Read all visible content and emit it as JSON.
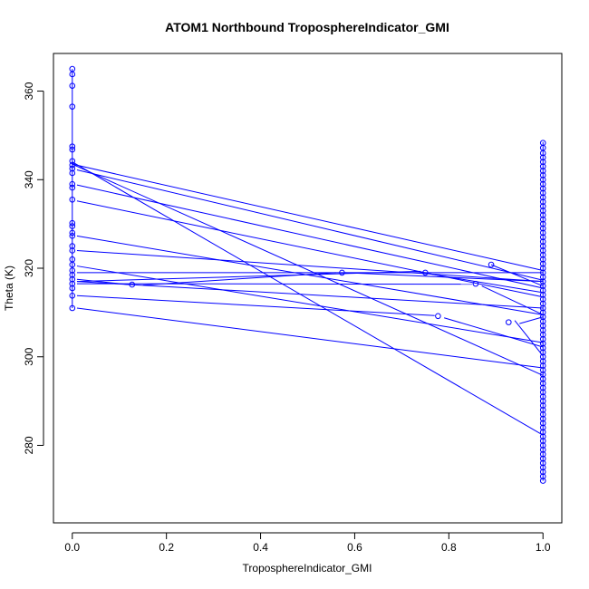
{
  "chart_data": {
    "type": "scatter",
    "title": "ATOM1 Northbound TroposphereIndicator_GMI",
    "xlabel": "TroposphereIndicator_GMI",
    "ylabel": "Theta (K)",
    "xlim": [
      -0.04,
      1.04
    ],
    "ylim": [
      262.5,
      368.5
    ],
    "x_ticks": [
      "0.0",
      "0.2",
      "0.4",
      "0.6",
      "0.8",
      "1.0"
    ],
    "y_ticks": [
      "280",
      "300",
      "320",
      "340",
      "360"
    ],
    "x_tick_values": [
      0,
      0.2,
      0.4,
      0.6,
      0.8,
      1.0
    ],
    "y_tick_values": [
      280,
      300,
      320,
      340,
      360
    ],
    "grid": false,
    "color": "#0000ff",
    "segments": [
      [
        [
          0.0,
          343.5
        ],
        [
          1.0,
          319.5
        ]
      ],
      [
        [
          0.0,
          343.5
        ],
        [
          1.0,
          295.8
        ]
      ],
      [
        [
          0.0,
          344.0
        ],
        [
          1.0,
          282.3
        ]
      ],
      [
        [
          0.01,
          342.2
        ],
        [
          1.0,
          317.3
        ]
      ],
      [
        [
          0.01,
          338.8
        ],
        [
          1.0,
          315.5
        ]
      ],
      [
        [
          0.01,
          335.2
        ],
        [
          1.0,
          313.5
        ]
      ],
      [
        [
          0.01,
          327.3
        ],
        [
          1.0,
          309.5
        ]
      ],
      [
        [
          0.01,
          324.0
        ],
        [
          1.0,
          317.0
        ]
      ],
      [
        [
          0.01,
          320.5
        ],
        [
          1.0,
          303.2
        ]
      ],
      [
        [
          0.01,
          319.0
        ],
        [
          1.0,
          319.0
        ]
      ],
      [
        [
          0.01,
          317.5
        ],
        [
          0.12,
          316.3
        ]
      ],
      [
        [
          0.15,
          316.2
        ],
        [
          0.56,
          319.0
        ]
      ],
      [
        [
          0.58,
          319.0
        ],
        [
          1.0,
          317.0
        ]
      ],
      [
        [
          0.01,
          317.0
        ],
        [
          1.0,
          311.0
        ]
      ],
      [
        [
          0.01,
          316.5
        ],
        [
          0.85,
          316.4
        ]
      ],
      [
        [
          0.87,
          316.0
        ],
        [
          1.0,
          309.5
        ]
      ],
      [
        [
          0.01,
          317.0
        ],
        [
          0.74,
          319.3
        ]
      ],
      [
        [
          0.76,
          318.7
        ],
        [
          1.0,
          314.5
        ]
      ],
      [
        [
          0.01,
          313.8
        ],
        [
          0.77,
          309.3
        ]
      ],
      [
        [
          0.79,
          308.8
        ],
        [
          1.0,
          302.2
        ]
      ],
      [
        [
          0.01,
          311.0
        ],
        [
          1.0,
          297.5
        ]
      ],
      [
        [
          0.89,
          320.8
        ],
        [
          1.0,
          316.0
        ]
      ],
      [
        [
          0.94,
          308.2
        ],
        [
          1.0,
          300.2
        ]
      ],
      [
        [
          0.95,
          307.5
        ],
        [
          1.0,
          309.0
        ]
      ],
      [
        [
          0.0,
          365.0
        ],
        [
          0.0,
          311.0
        ]
      ],
      [
        [
          1.0,
          348.5
        ],
        [
          1.0,
          272.0
        ]
      ]
    ],
    "points": [
      [
        0.0,
        365.0
      ],
      [
        0.0,
        363.8
      ],
      [
        0.0,
        361.2
      ],
      [
        0.0,
        356.5
      ],
      [
        0.0,
        347.5
      ],
      [
        0.0,
        346.8
      ],
      [
        0.0,
        344.2
      ],
      [
        0.0,
        343.3
      ],
      [
        0.0,
        342.5
      ],
      [
        0.0,
        341.5
      ],
      [
        0.0,
        339.0
      ],
      [
        0.0,
        338.2
      ],
      [
        0.0,
        335.5
      ],
      [
        0.0,
        330.2
      ],
      [
        0.0,
        329.5
      ],
      [
        0.0,
        328.0
      ],
      [
        0.0,
        327.3
      ],
      [
        0.0,
        325.0
      ],
      [
        0.0,
        324.0
      ],
      [
        0.0,
        322.0
      ],
      [
        0.0,
        320.8
      ],
      [
        0.0,
        319.5
      ],
      [
        0.0,
        318.5
      ],
      [
        0.0,
        317.5
      ],
      [
        0.0,
        316.5
      ],
      [
        0.0,
        315.5
      ],
      [
        0.0,
        313.8
      ],
      [
        0.0,
        311.0
      ],
      [
        0.127,
        316.3
      ],
      [
        0.573,
        319.0
      ],
      [
        0.75,
        319.0
      ],
      [
        0.857,
        316.5
      ],
      [
        0.777,
        309.2
      ],
      [
        0.89,
        320.8
      ],
      [
        0.927,
        307.8
      ],
      [
        1.0,
        348.3
      ],
      [
        1.0,
        347.2
      ],
      [
        1.0,
        346.0
      ],
      [
        1.0,
        345.0
      ],
      [
        1.0,
        344.0
      ],
      [
        1.0,
        343.0
      ],
      [
        1.0,
        342.0
      ],
      [
        1.0,
        341.0
      ],
      [
        1.0,
        340.0
      ],
      [
        1.0,
        339.0
      ],
      [
        1.0,
        338.0
      ],
      [
        1.0,
        337.0
      ],
      [
        1.0,
        336.0
      ],
      [
        1.0,
        335.0
      ],
      [
        1.0,
        334.0
      ],
      [
        1.0,
        333.0
      ],
      [
        1.0,
        332.0
      ],
      [
        1.0,
        331.0
      ],
      [
        1.0,
        330.0
      ],
      [
        1.0,
        329.0
      ],
      [
        1.0,
        328.0
      ],
      [
        1.0,
        327.0
      ],
      [
        1.0,
        326.0
      ],
      [
        1.0,
        325.0
      ],
      [
        1.0,
        324.0
      ],
      [
        1.0,
        323.0
      ],
      [
        1.0,
        322.0
      ],
      [
        1.0,
        321.0
      ],
      [
        1.0,
        320.0
      ],
      [
        1.0,
        319.0
      ],
      [
        1.0,
        318.0
      ],
      [
        1.0,
        317.0
      ],
      [
        1.0,
        316.0
      ],
      [
        1.0,
        315.0
      ],
      [
        1.0,
        314.0
      ],
      [
        1.0,
        313.0
      ],
      [
        1.0,
        312.0
      ],
      [
        1.0,
        311.0
      ],
      [
        1.0,
        310.0
      ],
      [
        1.0,
        309.0
      ],
      [
        1.0,
        308.0
      ],
      [
        1.0,
        307.0
      ],
      [
        1.0,
        306.0
      ],
      [
        1.0,
        305.0
      ],
      [
        1.0,
        304.0
      ],
      [
        1.0,
        303.0
      ],
      [
        1.0,
        302.0
      ],
      [
        1.0,
        301.0
      ],
      [
        1.0,
        300.0
      ],
      [
        1.0,
        299.0
      ],
      [
        1.0,
        298.0
      ],
      [
        1.0,
        297.0
      ],
      [
        1.0,
        296.0
      ],
      [
        1.0,
        295.0
      ],
      [
        1.0,
        294.0
      ],
      [
        1.0,
        293.0
      ],
      [
        1.0,
        292.0
      ],
      [
        1.0,
        291.0
      ],
      [
        1.0,
        290.0
      ],
      [
        1.0,
        289.0
      ],
      [
        1.0,
        288.0
      ],
      [
        1.0,
        287.0
      ],
      [
        1.0,
        286.0
      ],
      [
        1.0,
        285.0
      ],
      [
        1.0,
        284.0
      ],
      [
        1.0,
        283.0
      ],
      [
        1.0,
        282.0
      ],
      [
        1.0,
        281.0
      ],
      [
        1.0,
        280.0
      ],
      [
        1.0,
        279.0
      ],
      [
        1.0,
        278.0
      ],
      [
        1.0,
        277.0
      ],
      [
        1.0,
        276.0
      ],
      [
        1.0,
        275.0
      ],
      [
        1.0,
        274.0
      ],
      [
        1.0,
        273.0
      ],
      [
        1.0,
        272.0
      ]
    ]
  }
}
